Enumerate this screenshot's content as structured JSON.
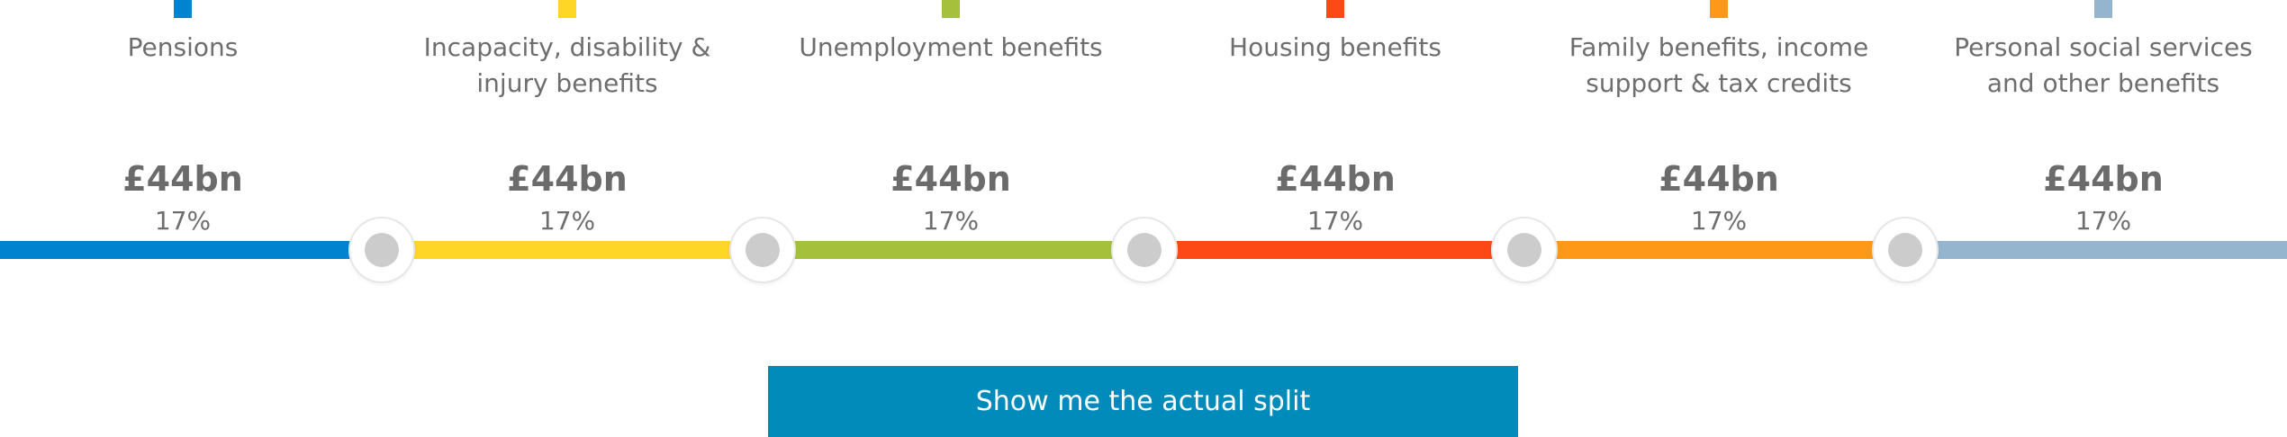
{
  "categories": [
    {
      "label": "Pensions",
      "amount": "£44bn",
      "percent": "17%",
      "color": "#0283cf"
    },
    {
      "label": "Incapacity, disability & injury benefits",
      "amount": "£44bn",
      "percent": "17%",
      "color": "#fdd626"
    },
    {
      "label": "Unemployment benefits",
      "amount": "£44bn",
      "percent": "17%",
      "color": "#a5c03a"
    },
    {
      "label": "Housing benefits",
      "amount": "£44bn",
      "percent": "17%",
      "color": "#fd4915"
    },
    {
      "label": "Family benefits, income support & tax credits",
      "amount": "£44bn",
      "percent": "17%",
      "color": "#fd9819"
    },
    {
      "label": "Personal social services and other benefits",
      "amount": "£44bn",
      "percent": "17%",
      "color": "#95b4ce"
    }
  ],
  "handle_knob_color": "#cccccc",
  "button": {
    "label": "Show me the actual split",
    "color": "#018bba"
  }
}
